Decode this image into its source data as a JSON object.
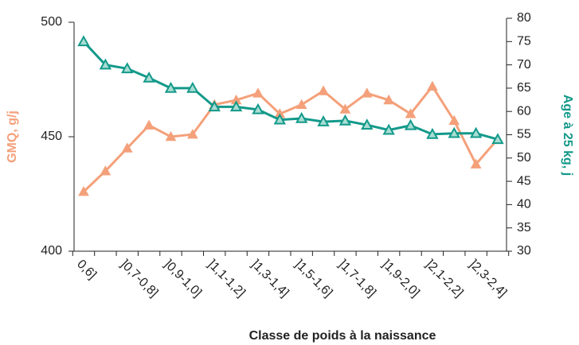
{
  "chart_data": {
    "type": "line",
    "x_label": "Classe de poids à la naissance",
    "y_label": "GMQ, g/j",
    "y2_label": "Age à 25 kg, j",
    "categories": [
      "0,6]",
      null,
      "]0,7-0,8]",
      null,
      "]0,9-1,0]",
      null,
      "]1,1-1,2]",
      null,
      "]1,3-1,4]",
      null,
      "]1,5-1,6]",
      null,
      "]1,7-1,8]",
      null,
      "]1,9-2,0]",
      null,
      "]2,1-2,2]",
      null,
      "]2,3-2,4]",
      null
    ],
    "series": [
      {
        "name": "GMQ",
        "color": "#f4a07a",
        "values": [
          426,
          435,
          445,
          455,
          450,
          451,
          464,
          466,
          469,
          460,
          464,
          470,
          462,
          469,
          466,
          460,
          472,
          457,
          438,
          449
        ]
      },
      {
        "name": "Age à 25 kg",
        "color": "#13998a",
        "axis": "y2",
        "values": [
          75,
          70,
          69.2,
          67.2,
          65,
          65,
          61,
          61,
          60.4,
          58.2,
          58.5,
          57.8,
          58,
          57.1,
          56,
          57,
          55.1,
          55.3,
          55.3,
          54
        ]
      }
    ],
    "ylim": [
      400,
      500
    ],
    "yticks": [
      400,
      450,
      500
    ],
    "y2lim": [
      30,
      80
    ],
    "y2ticks": [
      30,
      35,
      40,
      45,
      50,
      55,
      60,
      65,
      70,
      75,
      80
    ]
  }
}
